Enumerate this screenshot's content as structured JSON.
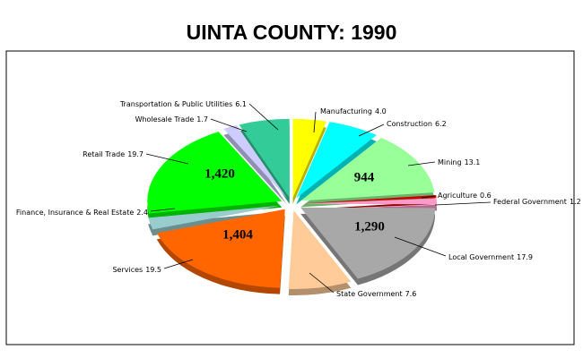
{
  "chart_data": {
    "type": "pie",
    "title": "UINTA COUNTY:  1990",
    "categories": [
      "Manufacturing",
      "Construction",
      "Mining",
      "Agriculture",
      "Federal Government",
      "Local Government",
      "State Government",
      "Services",
      "Finance, Insurance & Real Estate",
      "Retail Trade",
      "Wholesale Trade",
      "Transportation & Public Utilities"
    ],
    "values": [
      4.0,
      6.2,
      13.1,
      0.6,
      1.2,
      17.9,
      7.6,
      19.5,
      2.4,
      19.7,
      1.7,
      6.1
    ],
    "value_labels": [
      "4.0",
      "6.2",
      "13.1",
      "0.6",
      "1.2",
      "17.9",
      "7.6",
      "19.5",
      "2.4",
      "19.7",
      "1.7",
      "6.1"
    ],
    "colors": [
      "#ffff00",
      "#00ffff",
      "#99ff99",
      "#cc0000",
      "#ff99cc",
      "#a8a8a8",
      "#ffcc99",
      "#ff6600",
      "#99cccc",
      "#00ff00",
      "#ccccff",
      "#33cc99"
    ],
    "counts": [
      null,
      null,
      944,
      null,
      null,
      1290,
      null,
      1404,
      null,
      1420,
      null,
      null
    ],
    "count_labels": [
      null,
      null,
      "944",
      null,
      null,
      "1,290",
      null,
      "1,404",
      null,
      "1,420",
      null,
      null
    ]
  }
}
